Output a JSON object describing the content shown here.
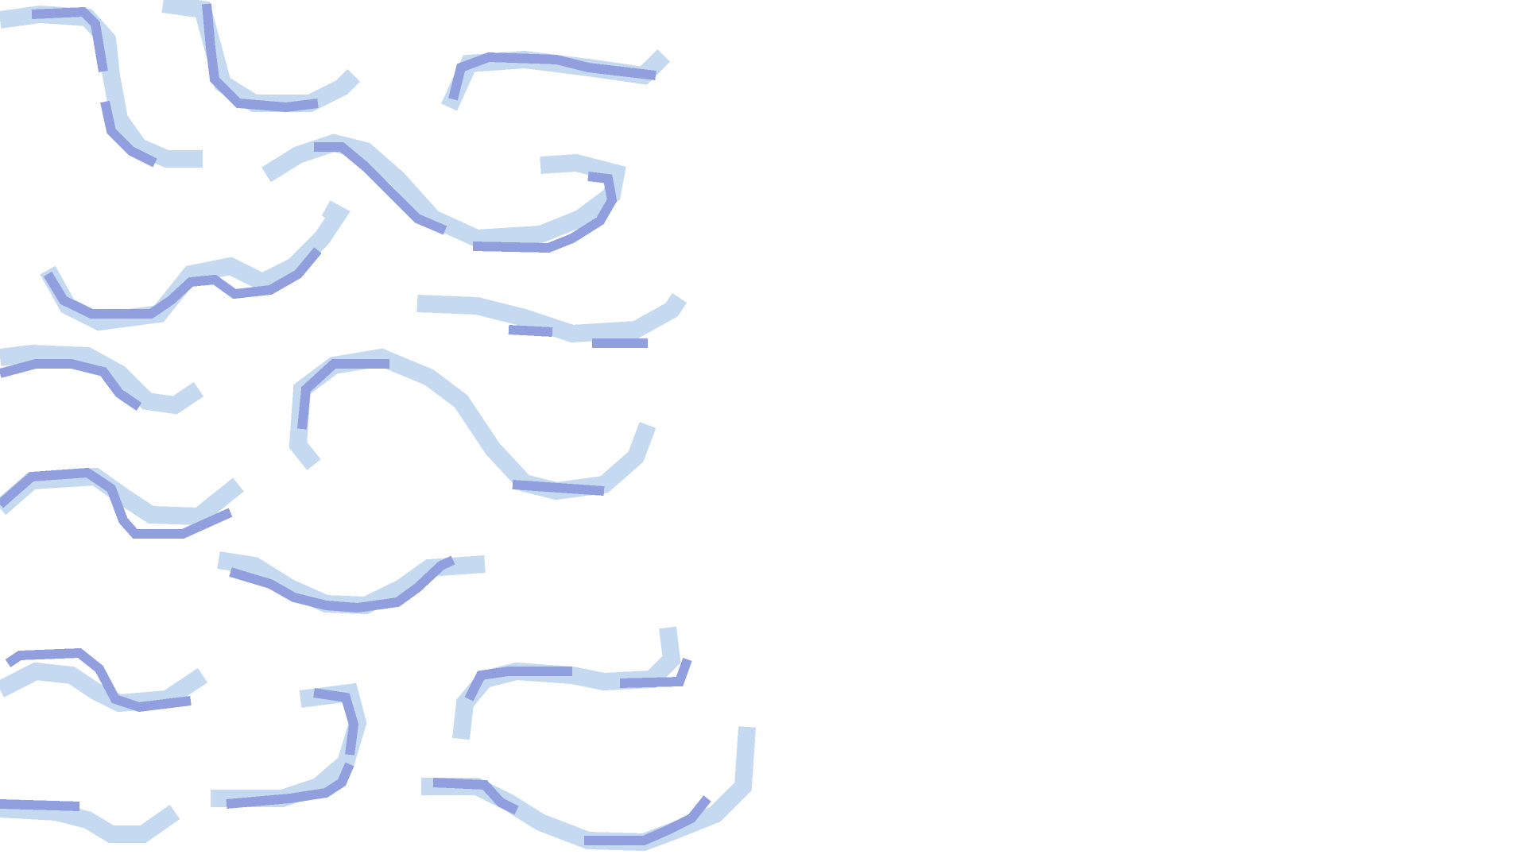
{
  "pattern": {
    "name": "pixel-squiggle-pattern",
    "motif": "wavy-line",
    "background_color": "#ffffff",
    "light_color": "#c5d9f1",
    "dark_color": "#929fdf"
  }
}
